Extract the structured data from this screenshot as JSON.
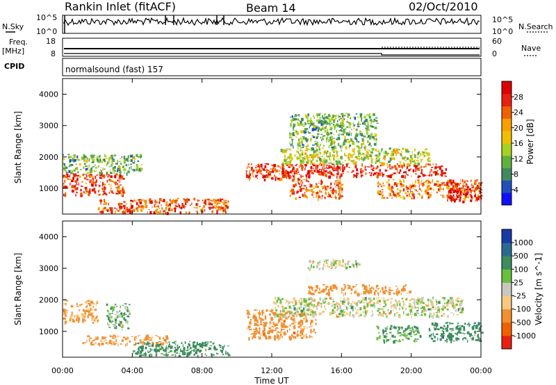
{
  "header": {
    "radar": "Rankin Inlet (fitACF)",
    "beam": "Beam 14",
    "date": "02/Oct/2010"
  },
  "noise_panel": {
    "left_label": "N.Sky",
    "right_label": "N.Search",
    "left_ticks": [
      "10^5",
      "10^0"
    ],
    "right_ticks": [
      "10^5",
      "10^0"
    ]
  },
  "freq_panel": {
    "left_label_1": "Freq.",
    "left_label_2": "[MHz]",
    "right_label": "Nave",
    "left_ticks": [
      "18",
      "8"
    ],
    "right_ticks": [
      "60",
      "0"
    ]
  },
  "cpid_panel": {
    "label": "CPID",
    "text": "normalsound (fast) 157"
  },
  "x_axis": {
    "ticks": [
      "00:00",
      "04:00",
      "08:00",
      "12:00",
      "16:00",
      "20:00",
      "00:00"
    ],
    "title": "Time UT"
  },
  "chart_data": [
    {
      "type": "heatmap",
      "name_panel": "power",
      "ylabel": "Slant Range [km]",
      "yticks": [
        "1000",
        "2000",
        "3000",
        "4000"
      ],
      "ylim": [
        180,
        4500
      ],
      "x_range_hours": [
        0,
        24
      ],
      "colorbar": {
        "title": "Power [dB]",
        "labels": [
          "4",
          "8",
          "12",
          "16",
          "20",
          "24",
          "28"
        ],
        "range": [
          0,
          30
        ],
        "colors": [
          "#1010ff",
          "#2050c0",
          "#408a60",
          "#60b040",
          "#a8d020",
          "#f0c000",
          "#f8a000",
          "#f06000",
          "#e82010",
          "#e00000"
        ]
      },
      "echo_bands": [
        {
          "t": [
            0.0,
            3.5
          ],
          "range_km": [
            800,
            1500
          ],
          "power_db": 26
        },
        {
          "t": [
            0.0,
            4.5
          ],
          "range_km": [
            1500,
            2100
          ],
          "power_db": 10
        },
        {
          "t": [
            2.0,
            9.5
          ],
          "range_km": [
            250,
            700
          ],
          "power_db": 24
        },
        {
          "t": [
            10.5,
            13.5
          ],
          "range_km": [
            1300,
            1800
          ],
          "power_db": 26
        },
        {
          "t": [
            13.0,
            16.0
          ],
          "range_km": [
            700,
            1300
          ],
          "power_db": 24
        },
        {
          "t": [
            12.5,
            22.0
          ],
          "range_km": [
            1400,
            1800
          ],
          "power_db": 28
        },
        {
          "t": [
            12.5,
            21.0
          ],
          "range_km": [
            1800,
            2300
          ],
          "power_db": 14
        },
        {
          "t": [
            13.0,
            18.0
          ],
          "range_km": [
            2300,
            3400
          ],
          "power_db": 10
        },
        {
          "t": [
            18.0,
            24.0
          ],
          "range_km": [
            700,
            1300
          ],
          "power_db": 22
        },
        {
          "t": [
            22.0,
            24.0
          ],
          "range_km": [
            600,
            1200
          ],
          "power_db": 30
        }
      ]
    },
    {
      "type": "heatmap",
      "name_panel": "velocity",
      "ylabel": "Slant Range [km]",
      "yticks": [
        "1000",
        "2000",
        "3000",
        "4000"
      ],
      "ylim": [
        180,
        4500
      ],
      "x_range_hours": [
        0,
        24
      ],
      "colorbar": {
        "title": "Velocity [m s^-1]",
        "labels": [
          "1000",
          "500",
          "100",
          "25",
          "-25",
          "-100",
          "-500",
          "-1000"
        ],
        "colors": [
          "#1a3aa8",
          "#2a6a90",
          "#3c8c5c",
          "#66c03c",
          "#c8c8c0",
          "#f8c880",
          "#f09030",
          "#f06000",
          "#e82010"
        ]
      },
      "echo_bands": [
        {
          "t": [
            0.0,
            2.0
          ],
          "range_km": [
            1300,
            2000
          ],
          "velocity_ms": -150
        },
        {
          "t": [
            2.5,
            3.8
          ],
          "range_km": [
            1100,
            1900
          ],
          "velocity_ms": 80
        },
        {
          "t": [
            1.0,
            6.0
          ],
          "range_km": [
            600,
            900
          ],
          "velocity_ms": -200
        },
        {
          "t": [
            4.0,
            9.5
          ],
          "range_km": [
            250,
            700
          ],
          "velocity_ms": 200
        },
        {
          "t": [
            10.5,
            14.5
          ],
          "range_km": [
            800,
            1700
          ],
          "velocity_ms": -400
        },
        {
          "t": [
            12.0,
            23.0
          ],
          "range_km": [
            1500,
            2100
          ],
          "velocity_ms": 0
        },
        {
          "t": [
            14.0,
            20.0
          ],
          "range_km": [
            2200,
            2500
          ],
          "velocity_ms": -300
        },
        {
          "t": [
            14.0,
            17.0
          ],
          "range_km": [
            3000,
            3300
          ],
          "velocity_ms": 0
        },
        {
          "t": [
            18.0,
            20.5
          ],
          "range_km": [
            700,
            1200
          ],
          "velocity_ms": 120
        },
        {
          "t": [
            21.0,
            24.0
          ],
          "range_km": [
            700,
            1300
          ],
          "velocity_ms": 400
        }
      ]
    }
  ]
}
